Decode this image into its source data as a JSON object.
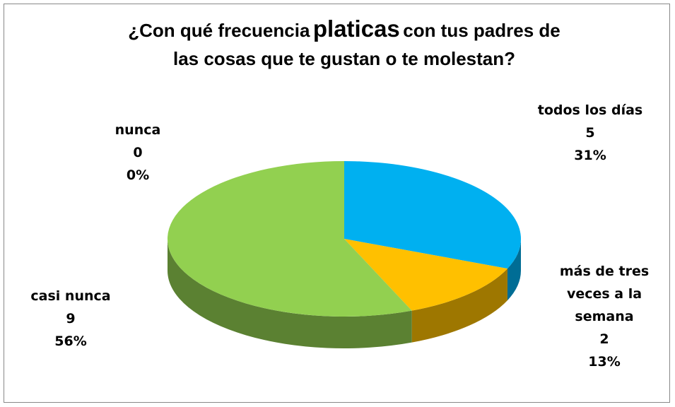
{
  "chart_data": {
    "type": "pie3d",
    "title": [
      "¿Con qué frecuencia",
      "platicas",
      "con tus padres de",
      "las cosas que te gustan o te molestan?"
    ],
    "categories": [
      "todos los días",
      "más de tres veces a la semana",
      "casi nunca",
      "nunca"
    ],
    "values": [
      5,
      2,
      9,
      0
    ],
    "value_labels": [
      "31%",
      "13%",
      "56%",
      "0%"
    ],
    "colors": [
      "#00b0f0",
      "#ffc000",
      "#92d050",
      "#c00000"
    ]
  }
}
